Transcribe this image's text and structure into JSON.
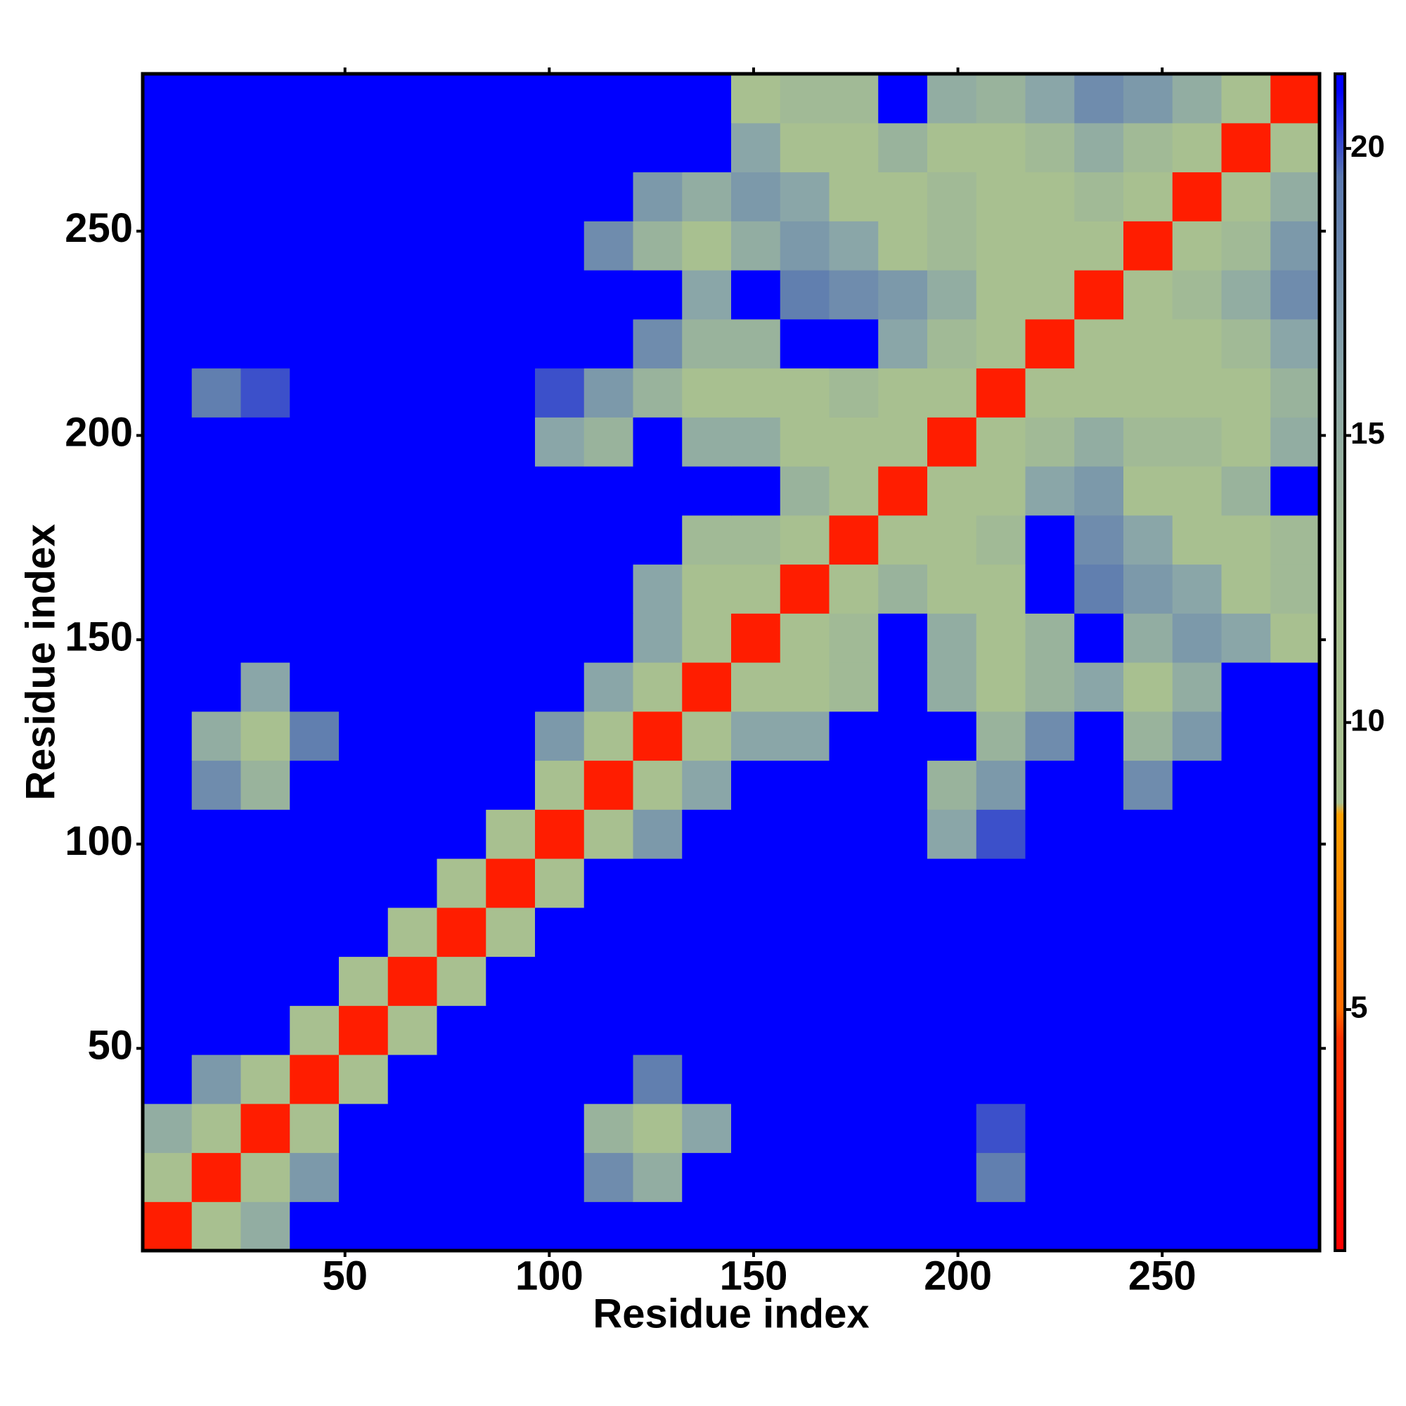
{
  "chart_data": {
    "type": "heatmap",
    "xlabel": "Residue index",
    "ylabel": "Residue index",
    "xlim": [
      0.5,
      288.5
    ],
    "ylim": [
      0.5,
      288.5
    ],
    "xticks": [
      50,
      100,
      150,
      200,
      250
    ],
    "yticks": [
      50,
      100,
      150,
      200,
      250
    ],
    "x": [
      6.5,
      18.5,
      30.5,
      42.5,
      54.5,
      66.5,
      78.5,
      90.5,
      102.5,
      114.5,
      126.5,
      138.5,
      150.5,
      162.5,
      174.5,
      186.5,
      198.5,
      210.5,
      222.5,
      234.5,
      246.5,
      258.5,
      270.5,
      282.5
    ],
    "y": [
      6.5,
      18.5,
      30.5,
      42.5,
      54.5,
      66.5,
      78.5,
      90.5,
      102.5,
      114.5,
      126.5,
      138.5,
      150.5,
      162.5,
      174.5,
      186.5,
      198.5,
      210.5,
      222.5,
      234.5,
      246.5,
      258.5,
      270.5,
      282.5
    ],
    "z": [
      [
        3,
        10,
        15,
        21,
        21,
        21,
        21,
        21,
        21,
        21,
        21,
        21,
        21,
        21,
        21,
        21,
        21,
        21,
        21,
        21,
        21,
        21,
        21,
        21
      ],
      [
        10,
        3,
        11,
        17,
        21,
        21,
        21,
        21,
        21,
        18,
        15,
        21,
        21,
        21,
        21,
        21,
        21,
        19,
        21,
        21,
        21,
        21,
        21,
        21
      ],
      [
        15,
        11,
        3,
        12,
        21,
        21,
        21,
        21,
        21,
        14,
        10,
        16,
        21,
        21,
        21,
        21,
        21,
        20,
        21,
        21,
        21,
        21,
        21,
        21
      ],
      [
        21,
        17,
        12,
        3,
        12,
        21,
        21,
        21,
        21,
        21,
        19,
        21,
        21,
        21,
        21,
        21,
        21,
        21,
        21,
        21,
        21,
        21,
        21,
        21
      ],
      [
        21,
        21,
        21,
        12,
        3,
        12,
        21,
        21,
        21,
        21,
        21,
        21,
        21,
        21,
        21,
        21,
        21,
        21,
        21,
        21,
        21,
        21,
        21,
        21
      ],
      [
        21,
        21,
        21,
        21,
        12,
        3,
        12,
        21,
        21,
        21,
        21,
        21,
        21,
        21,
        21,
        21,
        21,
        21,
        21,
        21,
        21,
        21,
        21,
        21
      ],
      [
        21,
        21,
        21,
        21,
        21,
        12,
        3,
        12,
        21,
        21,
        21,
        21,
        21,
        21,
        21,
        21,
        21,
        21,
        21,
        21,
        21,
        21,
        21,
        21
      ],
      [
        21,
        21,
        21,
        21,
        21,
        21,
        12,
        3,
        12,
        21,
        21,
        21,
        21,
        21,
        21,
        21,
        21,
        21,
        21,
        21,
        21,
        21,
        21,
        21
      ],
      [
        21,
        21,
        21,
        21,
        21,
        21,
        21,
        12,
        3,
        11,
        17,
        21,
        21,
        21,
        21,
        21,
        16,
        20,
        21,
        21,
        21,
        21,
        21,
        21
      ],
      [
        21,
        18,
        14,
        21,
        21,
        21,
        21,
        21,
        11,
        3,
        11,
        16,
        21,
        21,
        21,
        21,
        14,
        17,
        21,
        21,
        18,
        21,
        21,
        21
      ],
      [
        21,
        15,
        10,
        19,
        21,
        21,
        21,
        21,
        17,
        11,
        3,
        11,
        16,
        16,
        21,
        21,
        21,
        14,
        18,
        21,
        14,
        17,
        21,
        21
      ],
      [
        21,
        21,
        16,
        21,
        21,
        21,
        21,
        21,
        21,
        16,
        11,
        3,
        11,
        11,
        13,
        21,
        15,
        12,
        14,
        16,
        11,
        15,
        21,
        21
      ],
      [
        21,
        21,
        21,
        21,
        21,
        21,
        21,
        21,
        21,
        21,
        16,
        11,
        3,
        9,
        13,
        21,
        15,
        12,
        14,
        21,
        15,
        17,
        16,
        12
      ],
      [
        21,
        21,
        21,
        21,
        21,
        21,
        21,
        21,
        21,
        21,
        16,
        11,
        9,
        3,
        9,
        14,
        12,
        11,
        21,
        19,
        17,
        16,
        11,
        13
      ],
      [
        21,
        21,
        21,
        21,
        21,
        21,
        21,
        21,
        21,
        21,
        21,
        13,
        13,
        9,
        3,
        9,
        11,
        13,
        21,
        18,
        16,
        11,
        12,
        13
      ],
      [
        21,
        21,
        21,
        21,
        21,
        21,
        21,
        21,
        21,
        21,
        21,
        21,
        21,
        14,
        9,
        3,
        9,
        12,
        16,
        17,
        12,
        12,
        14,
        21
      ],
      [
        21,
        21,
        21,
        21,
        21,
        21,
        21,
        21,
        16,
        14,
        21,
        15,
        15,
        12,
        11,
        9,
        3,
        9,
        13,
        15,
        13,
        13,
        12,
        15
      ],
      [
        21,
        19,
        20,
        21,
        21,
        21,
        21,
        21,
        20,
        17,
        14,
        12,
        12,
        11,
        13,
        12,
        9,
        3,
        9,
        11,
        12,
        11,
        10,
        14
      ],
      [
        21,
        21,
        21,
        21,
        21,
        21,
        21,
        21,
        21,
        21,
        18,
        14,
        14,
        21,
        21,
        16,
        13,
        9,
        3,
        9,
        11,
        12,
        13,
        16
      ],
      [
        21,
        21,
        21,
        21,
        21,
        21,
        21,
        21,
        21,
        21,
        21,
        16,
        21,
        19,
        18,
        17,
        15,
        11,
        9,
        3,
        9,
        13,
        15,
        18
      ],
      [
        21,
        21,
        21,
        21,
        21,
        21,
        21,
        21,
        21,
        18,
        14,
        11,
        15,
        17,
        16,
        12,
        13,
        12,
        11,
        9,
        3,
        9,
        13,
        17
      ],
      [
        21,
        21,
        21,
        21,
        21,
        21,
        21,
        21,
        21,
        21,
        17,
        15,
        17,
        16,
        11,
        12,
        13,
        11,
        12,
        13,
        9,
        3,
        9,
        15
      ],
      [
        21,
        21,
        21,
        21,
        21,
        21,
        21,
        21,
        21,
        21,
        21,
        21,
        16,
        11,
        12,
        14,
        12,
        10,
        13,
        15,
        13,
        9,
        3,
        9
      ],
      [
        21,
        21,
        21,
        21,
        21,
        21,
        21,
        21,
        21,
        21,
        21,
        21,
        12,
        13,
        13,
        21,
        15,
        14,
        16,
        18,
        17,
        15,
        9,
        3
      ]
    ],
    "colorscale": [
      [
        0.8,
        "#ff0000"
      ],
      [
        4.5,
        "#ff3000"
      ],
      [
        5,
        "#ff6a00"
      ],
      [
        8.4,
        "#ffa000"
      ],
      [
        8.6,
        "#a8c090"
      ],
      [
        12,
        "#a8c090"
      ],
      [
        16,
        "#8aa6a8"
      ],
      [
        19.5,
        "#5a78b0"
      ],
      [
        21,
        "#0000ff"
      ],
      [
        21.3,
        "#0000ff"
      ]
    ],
    "colorbar": {
      "lim": [
        0.8,
        21.3
      ],
      "ticks": [
        5,
        10,
        15,
        20
      ]
    }
  }
}
